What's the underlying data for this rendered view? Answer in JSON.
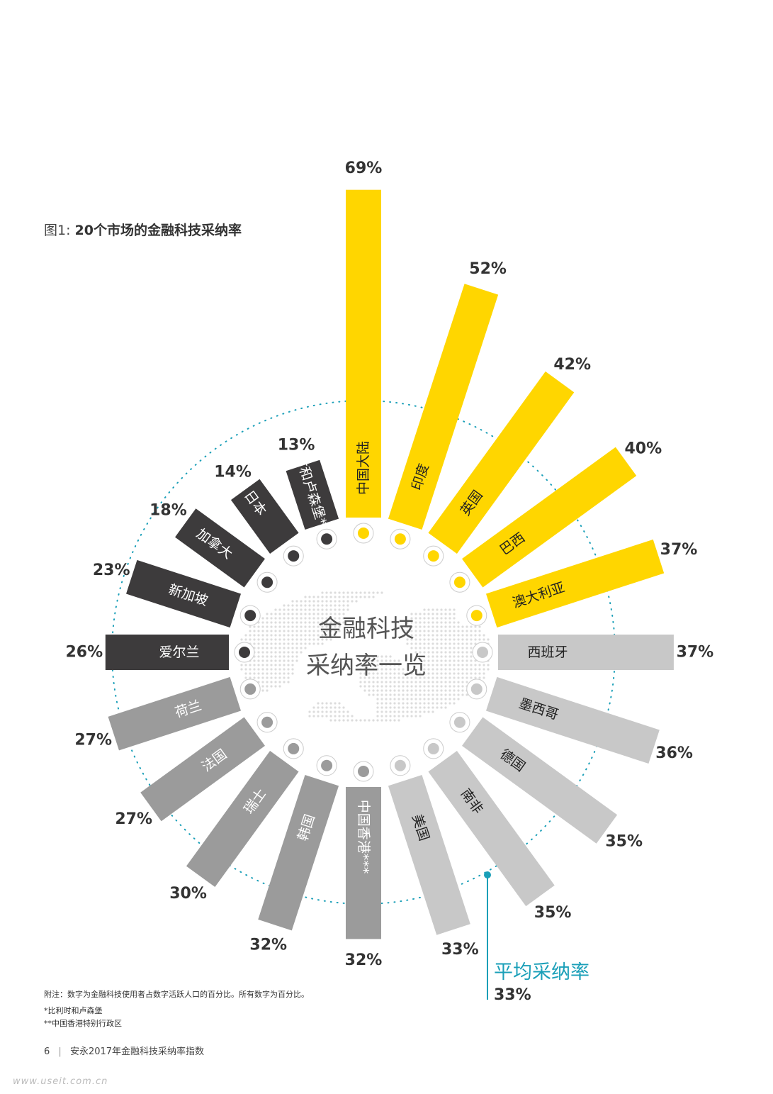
{
  "figure": {
    "title_prefix": "图1: ",
    "title_main": "20个市场的金融科技采纳率"
  },
  "center_text": {
    "line1": "金融科技",
    "line2": "采纳率一览"
  },
  "average": {
    "label": "平均采纳率",
    "value_label": "33%",
    "value": 33
  },
  "notes": {
    "note1": "附注：数字为金融科技使用者占数字活跃人口的百分比。所有数字为百分比。",
    "note2": "*比利时和卢森堡",
    "note3": "**中国香港特别行政区"
  },
  "footer": {
    "page_number": "6",
    "separator": "|",
    "publication": "安永2017年金融科技采纳率指数"
  },
  "watermark": "www.useit.com.cn",
  "colors": {
    "top_five": "#FFD600",
    "dark_group": "#3D3B3C",
    "light_group": "#C8C8C8",
    "mid_group": "#9B9B9B",
    "average_line": "#1A9FB8"
  },
  "chart_data": {
    "type": "bar",
    "layout": "radial",
    "title": "20个市场的金融科技采纳率",
    "unit": "%",
    "categories": [
      "中国大陆",
      "印度",
      "英国",
      "巴西",
      "澳大利亚",
      "西班牙",
      "墨西哥",
      "德国",
      "南非",
      "美国",
      "中国香港***",
      "韩国",
      "瑞士",
      "法国",
      "荷兰",
      "爱尔兰",
      "新加坡",
      "加拿大",
      "日本",
      "比利时和卢森堡*"
    ],
    "values": [
      69,
      52,
      42,
      40,
      37,
      37,
      36,
      35,
      35,
      33,
      32,
      32,
      30,
      27,
      27,
      26,
      23,
      18,
      14,
      13
    ],
    "value_labels": [
      "69%",
      "52%",
      "42%",
      "40%",
      "37%",
      "37%",
      "36%",
      "35%",
      "35%",
      "33%",
      "32%",
      "32%",
      "30%",
      "27%",
      "27%",
      "26%",
      "23%",
      "18%",
      "14%",
      "13%"
    ],
    "color_groups": [
      "top_five",
      "top_five",
      "top_five",
      "top_five",
      "top_five",
      "light_group",
      "light_group",
      "light_group",
      "light_group",
      "light_group",
      "mid_group",
      "mid_group",
      "mid_group",
      "mid_group",
      "mid_group",
      "dark_group",
      "dark_group",
      "dark_group",
      "dark_group",
      "dark_group"
    ],
    "reference_line": {
      "label": "平均采纳率",
      "value": 33
    }
  }
}
